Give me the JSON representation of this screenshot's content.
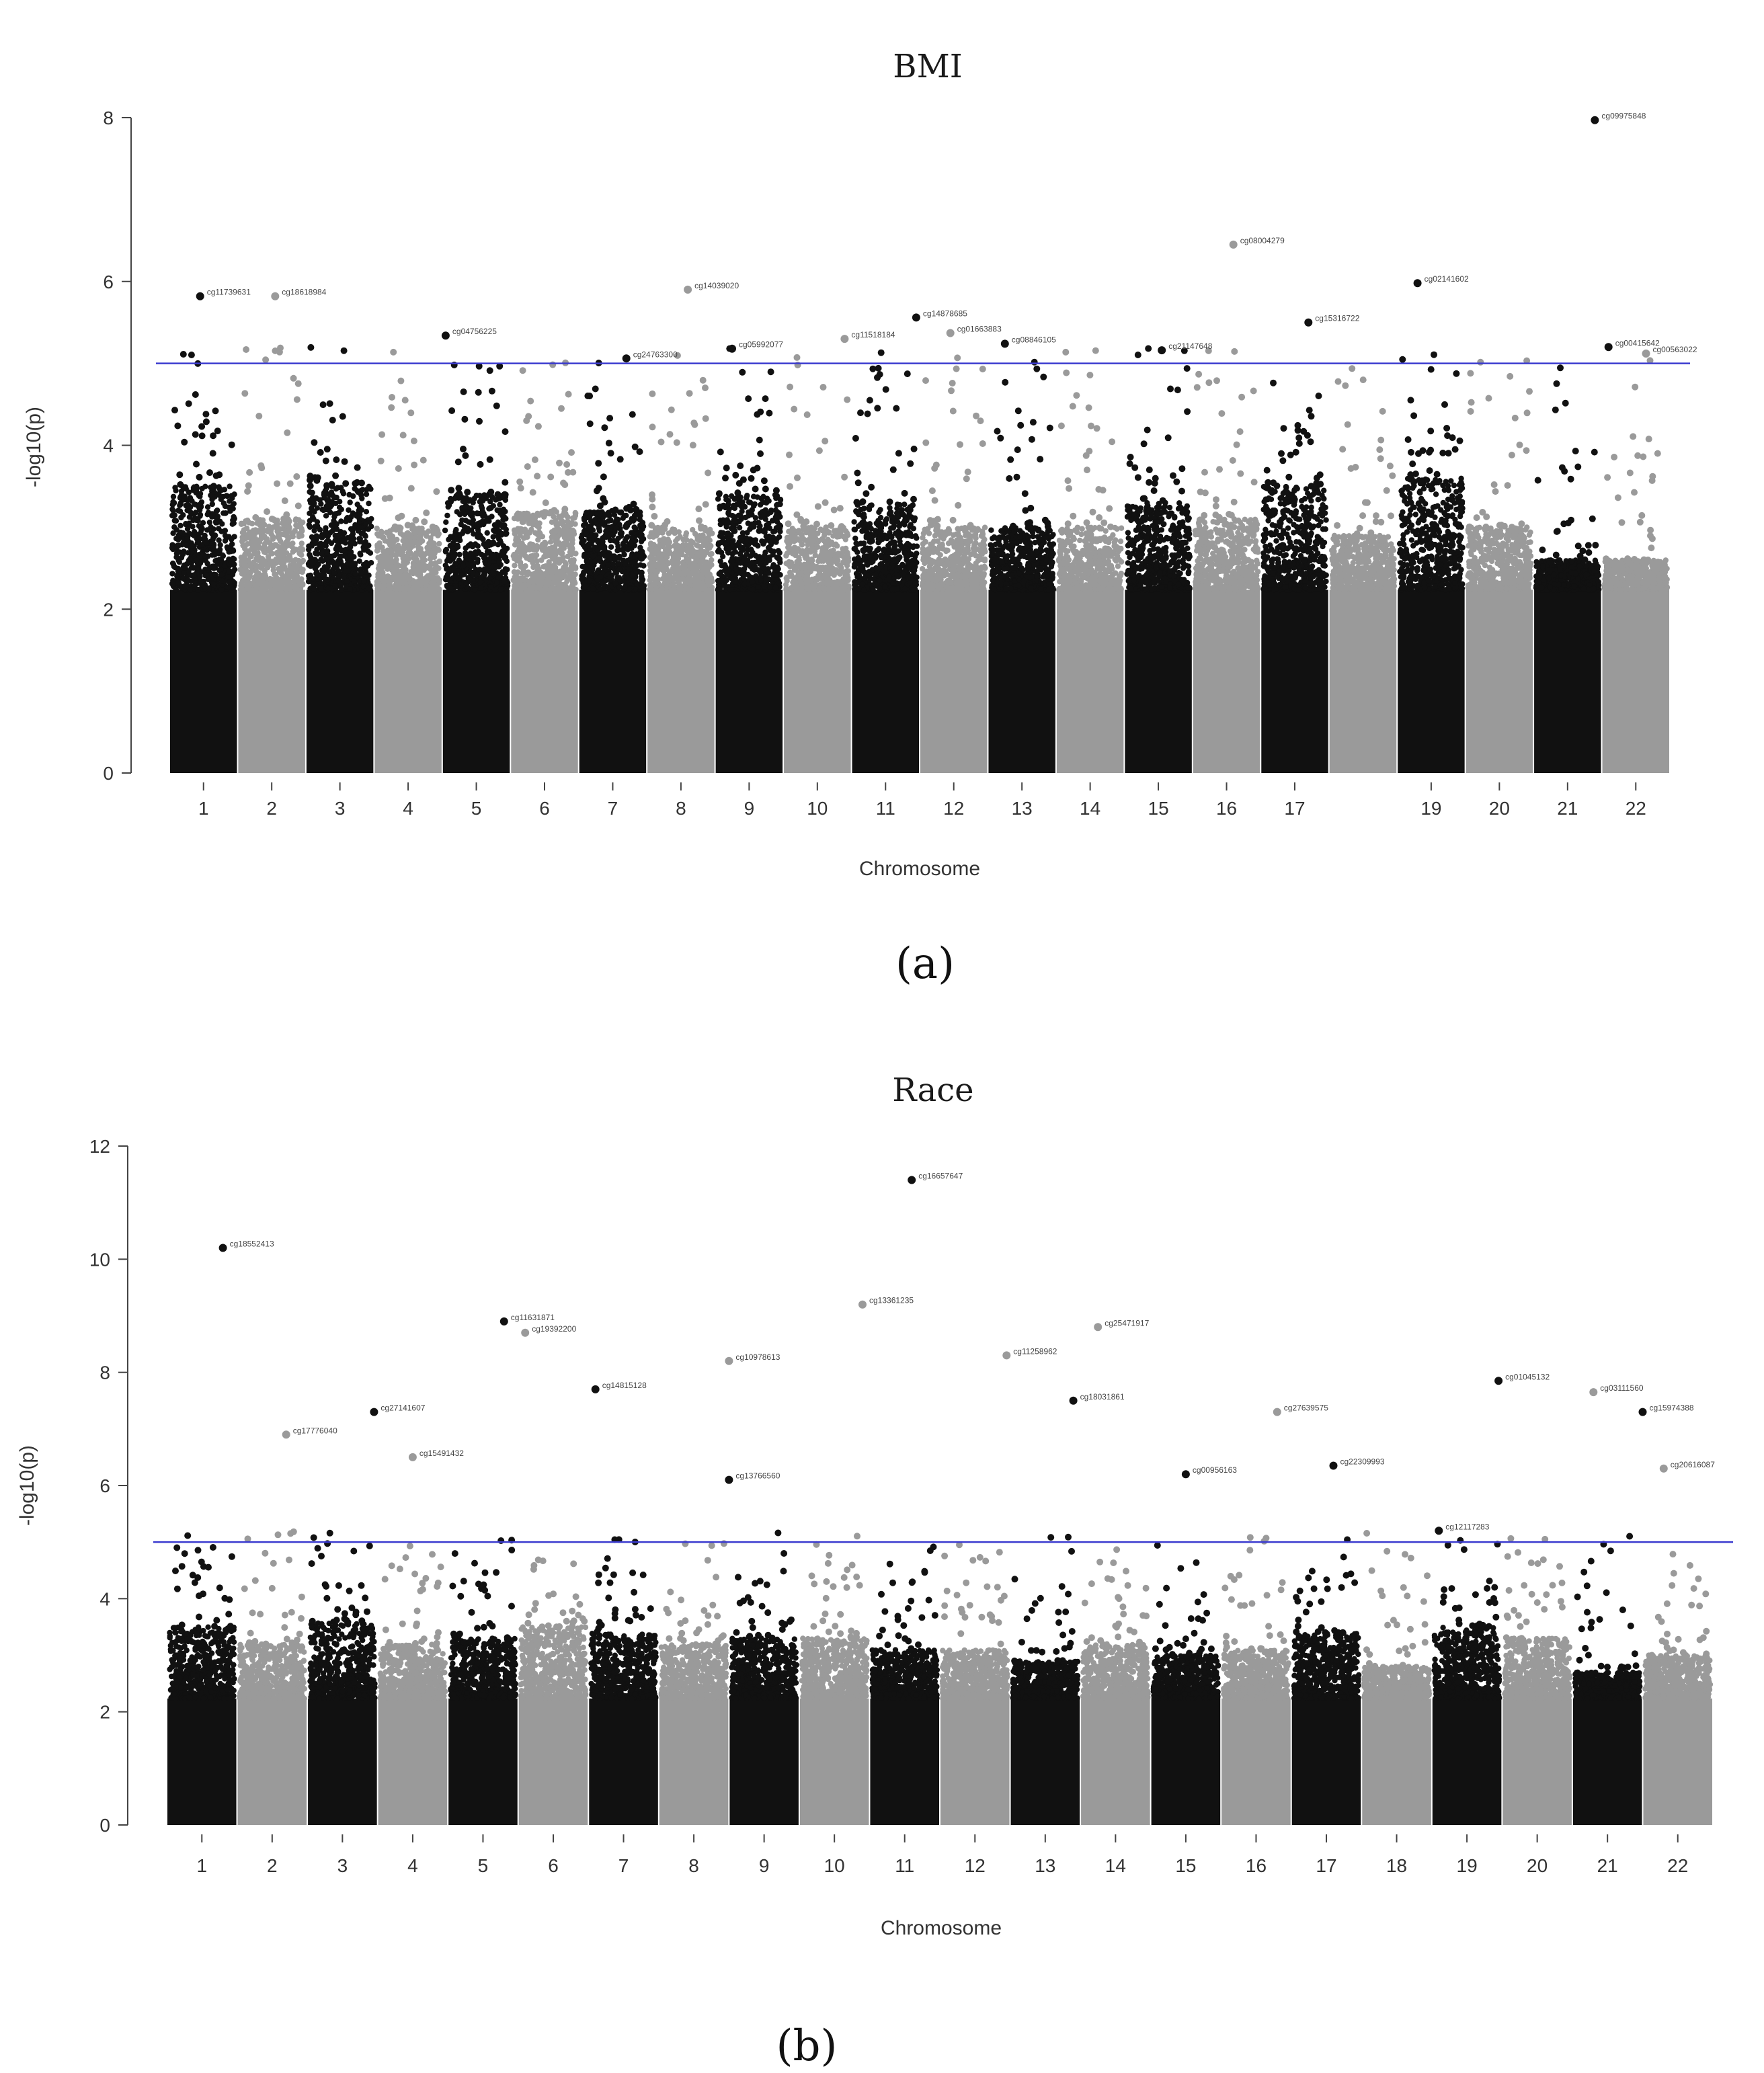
{
  "chart_data": [
    {
      "type": "scatter",
      "subtype": "manhattan",
      "title": "BMI",
      "xlabel": "Chromosome",
      "ylabel": "-log10(p)",
      "caption": "(a)",
      "ylim": [
        0,
        8
      ],
      "yticks": [
        0,
        2,
        4,
        6,
        8
      ],
      "threshold": 5,
      "threshold_color": "#3b3bcf",
      "colors": {
        "odd": "#111111",
        "even": "#9a9a9a"
      },
      "chromosomes": [
        "1",
        "2",
        "3",
        "4",
        "5",
        "6",
        "7",
        "8",
        "9",
        "10",
        "11",
        "12",
        "13",
        "14",
        "15",
        "16",
        "17",
        "18",
        "19",
        "20",
        "21",
        "22"
      ],
      "tick_labels": [
        "1",
        "2",
        "3",
        "4",
        "5",
        "6",
        "7",
        "8",
        "9",
        "10",
        "11",
        "12",
        "13",
        "14",
        "15",
        "16",
        "17",
        "19",
        "20",
        "21",
        "22"
      ],
      "bulk": [
        3.5,
        3.1,
        3.5,
        3.0,
        3.4,
        3.2,
        3.2,
        3.0,
        3.4,
        3.0,
        3.3,
        3.0,
        3.0,
        3.0,
        3.3,
        3.1,
        3.5,
        2.9,
        3.6,
        3.0,
        2.6,
        2.6
      ],
      "hits": [
        {
          "chr": 1,
          "pos": 0.45,
          "y": 5.82,
          "label": "cg11739631"
        },
        {
          "chr": 2,
          "pos": 0.55,
          "y": 5.82,
          "label": "cg18618984"
        },
        {
          "chr": 5,
          "pos": 0.05,
          "y": 5.34,
          "label": "cg04756225"
        },
        {
          "chr": 7,
          "pos": 0.7,
          "y": 5.06,
          "label": "cg24763300"
        },
        {
          "chr": 8,
          "pos": 0.6,
          "y": 5.9,
          "label": "cg14039020"
        },
        {
          "chr": 9,
          "pos": 0.25,
          "y": 5.18,
          "label": "cg05992077"
        },
        {
          "chr": 10,
          "pos": 0.9,
          "y": 5.3,
          "label": "cg11518184"
        },
        {
          "chr": 11,
          "pos": 0.95,
          "y": 5.56,
          "label": "cg14878685"
        },
        {
          "chr": 12,
          "pos": 0.45,
          "y": 5.37,
          "label": "cg01663883"
        },
        {
          "chr": 13,
          "pos": 0.25,
          "y": 5.24,
          "label": "cg08846105"
        },
        {
          "chr": 15,
          "pos": 0.55,
          "y": 5.16,
          "label": "cg21147648"
        },
        {
          "chr": 16,
          "pos": 0.6,
          "y": 6.45,
          "label": "cg08004279"
        },
        {
          "chr": 17,
          "pos": 0.7,
          "y": 5.5,
          "label": "cg15316722"
        },
        {
          "chr": 19,
          "pos": 0.3,
          "y": 5.98,
          "label": "cg02141602"
        },
        {
          "chr": 21,
          "pos": 0.9,
          "y": 7.97,
          "label": "cg09975848"
        },
        {
          "chr": 21,
          "pos": 1.1,
          "y": 5.2,
          "label": "cg00415642"
        },
        {
          "chr": 22,
          "pos": 0.65,
          "y": 5.12,
          "label": "cg00563022"
        }
      ]
    },
    {
      "type": "scatter",
      "subtype": "manhattan",
      "title": "Race",
      "xlabel": "Chromosome",
      "ylabel": "-log10(p)",
      "caption": "(b)",
      "ylim": [
        0,
        12
      ],
      "yticks": [
        0,
        2,
        4,
        6,
        8,
        10,
        12
      ],
      "threshold": 5,
      "threshold_color": "#3b3bcf",
      "colors": {
        "odd": "#111111",
        "even": "#9a9a9a"
      },
      "chromosomes": [
        "1",
        "2",
        "3",
        "4",
        "5",
        "6",
        "7",
        "8",
        "9",
        "10",
        "11",
        "12",
        "13",
        "14",
        "15",
        "16",
        "17",
        "18",
        "19",
        "20",
        "21",
        "22"
      ],
      "tick_labels": [
        "1",
        "2",
        "3",
        "4",
        "5",
        "6",
        "7",
        "8",
        "9",
        "10",
        "11",
        "12",
        "13",
        "14",
        "15",
        "16",
        "17",
        "18",
        "19",
        "20",
        "21",
        "22"
      ],
      "bulk": [
        3.5,
        3.2,
        3.6,
        3.2,
        3.3,
        3.5,
        3.4,
        3.2,
        3.3,
        3.3,
        3.1,
        3.1,
        2.9,
        3.2,
        3.0,
        3.1,
        3.4,
        2.8,
        3.5,
        3.3,
        2.7,
        3.0
      ],
      "hits": [
        {
          "chr": 1,
          "pos": 0.8,
          "y": 10.2,
          "label": "cg18552413"
        },
        {
          "chr": 2,
          "pos": 0.7,
          "y": 6.9,
          "label": "cg17776040"
        },
        {
          "chr": 3,
          "pos": 0.95,
          "y": 7.3,
          "label": "cg27141607"
        },
        {
          "chr": 4,
          "pos": 0.5,
          "y": 6.5,
          "label": "cg15491432"
        },
        {
          "chr": 5,
          "pos": 0.8,
          "y": 8.9,
          "label": "cg11631871"
        },
        {
          "chr": 6,
          "pos": 0.1,
          "y": 8.7,
          "label": "cg19392200"
        },
        {
          "chr": 7,
          "pos": 0.1,
          "y": 7.7,
          "label": "cg14815128"
        },
        {
          "chr": 8,
          "pos": 1.0,
          "y": 8.2,
          "label": "cg10978613"
        },
        {
          "chr": 9,
          "pos": 0.0,
          "y": 6.1,
          "label": "cg13766560"
        },
        {
          "chr": 10,
          "pos": 0.9,
          "y": 9.2,
          "label": "cg13361235"
        },
        {
          "chr": 11,
          "pos": 0.6,
          "y": 11.4,
          "label": "cg16657647"
        },
        {
          "chr": 12,
          "pos": 0.95,
          "y": 8.3,
          "label": "cg11258962"
        },
        {
          "chr": 13,
          "pos": 0.9,
          "y": 7.5,
          "label": "cg18031861"
        },
        {
          "chr": 14,
          "pos": 0.25,
          "y": 8.8,
          "label": "cg25471917"
        },
        {
          "chr": 15,
          "pos": 0.5,
          "y": 6.2,
          "label": "cg00956163"
        },
        {
          "chr": 16,
          "pos": 0.8,
          "y": 7.3,
          "label": "cg27639575"
        },
        {
          "chr": 17,
          "pos": 0.6,
          "y": 6.35,
          "label": "cg22309993"
        },
        {
          "chr": 19,
          "pos": 0.1,
          "y": 5.2,
          "label": "cg12117283"
        },
        {
          "chr": 19,
          "pos": 0.95,
          "y": 7.85,
          "label": "cg01045132"
        },
        {
          "chr": 20,
          "pos": 1.3,
          "y": 7.65,
          "label": "cg03111560"
        },
        {
          "chr": 21,
          "pos": 1.0,
          "y": 7.3,
          "label": "cg15974388"
        },
        {
          "chr": 22,
          "pos": 0.3,
          "y": 6.3,
          "label": "cg20616087"
        }
      ]
    }
  ]
}
